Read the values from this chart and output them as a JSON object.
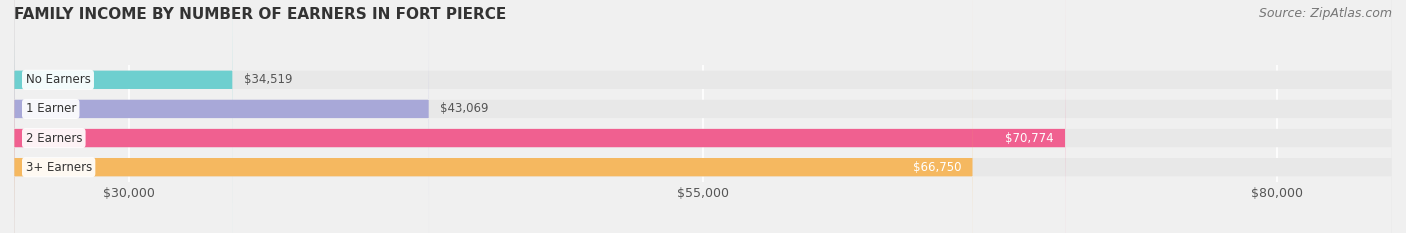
{
  "title": "FAMILY INCOME BY NUMBER OF EARNERS IN FORT PIERCE",
  "source": "Source: ZipAtlas.com",
  "categories": [
    "No Earners",
    "1 Earner",
    "2 Earners",
    "3+ Earners"
  ],
  "values": [
    34519,
    43069,
    70774,
    66750
  ],
  "bar_colors": [
    "#6ecfcf",
    "#a8a8d8",
    "#f06090",
    "#f5b860"
  ],
  "label_colors": [
    "#333333",
    "#333333",
    "#ffffff",
    "#ffffff"
  ],
  "value_labels": [
    "$34,519",
    "$43,069",
    "$70,774",
    "$66,750"
  ],
  "xlim": [
    25000,
    85000
  ],
  "xticks": [
    30000,
    55000,
    80000
  ],
  "xtick_labels": [
    "$30,000",
    "$55,000",
    "$80,000"
  ],
  "bar_height": 0.62,
  "background_color": "#f0f0f0",
  "bar_background": "#e8e8e8",
  "title_fontsize": 11,
  "source_fontsize": 9
}
